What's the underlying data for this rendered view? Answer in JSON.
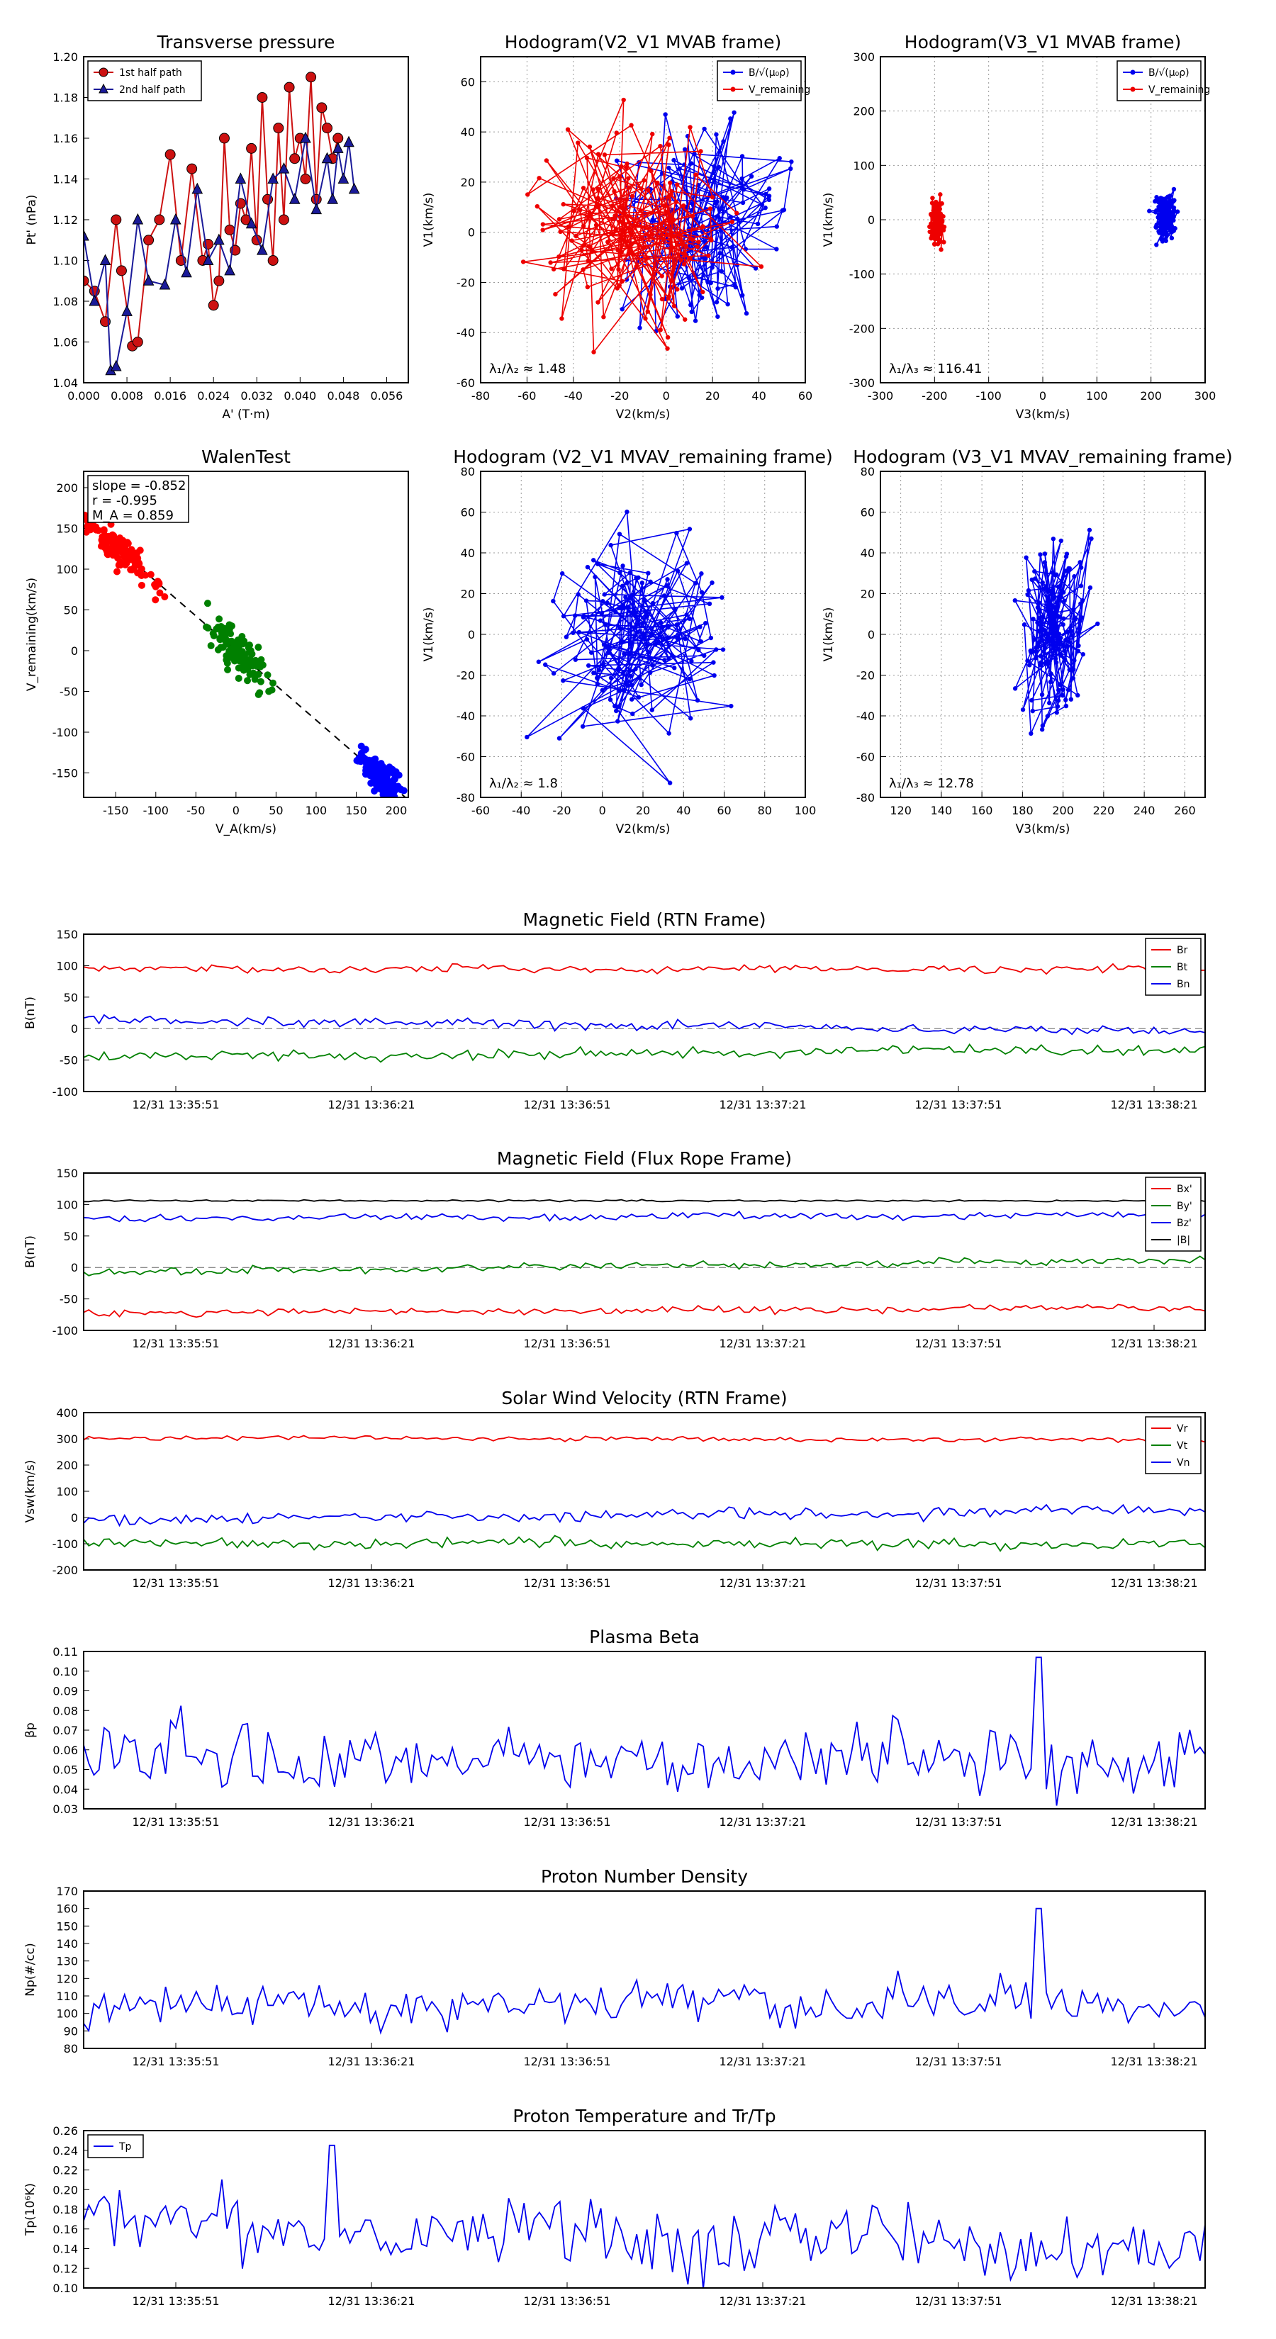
{
  "chart_data": [
    {
      "id": "tp",
      "type": "scatter",
      "title": "Transverse pressure",
      "xlabel": "A' (T·m)",
      "ylabel": "Pt' (nPa)",
      "xlim": [
        0,
        0.06
      ],
      "ylim": [
        1.04,
        1.2
      ],
      "xticks": [
        0,
        0.008,
        0.016,
        0.024,
        0.032,
        0.04,
        0.048,
        0.056
      ],
      "xtick_labels": [
        "0.000",
        "0.008",
        "0.016",
        "0.024",
        "0.032",
        "0.040",
        "0.048",
        "0.056"
      ],
      "yticks": [
        1.04,
        1.06,
        1.08,
        1.1,
        1.12,
        1.14,
        1.16,
        1.18,
        1.2
      ],
      "ytick_labels": [
        "1.04",
        "1.06",
        "1.08",
        "1.10",
        "1.12",
        "1.14",
        "1.16",
        "1.18",
        "1.20"
      ],
      "legend": "top-left",
      "series": [
        {
          "name": "1st half path",
          "color": "#cc1111",
          "marker": "circle",
          "x": [
            0.0,
            0.002,
            0.004,
            0.006,
            0.007,
            0.009,
            0.01,
            0.012,
            0.014,
            0.016,
            0.018,
            0.02,
            0.022,
            0.023,
            0.024,
            0.025,
            0.026,
            0.027,
            0.028,
            0.029,
            0.03,
            0.031,
            0.032,
            0.033,
            0.034,
            0.035,
            0.036,
            0.037,
            0.038,
            0.039,
            0.04,
            0.041,
            0.042,
            0.043,
            0.044,
            0.045,
            0.046,
            0.047
          ],
          "y": [
            1.09,
            1.085,
            1.07,
            1.12,
            1.095,
            1.058,
            1.06,
            1.11,
            1.12,
            1.152,
            1.1,
            1.145,
            1.1,
            1.108,
            1.078,
            1.09,
            1.16,
            1.115,
            1.105,
            1.128,
            1.12,
            1.155,
            1.11,
            1.18,
            1.13,
            1.1,
            1.165,
            1.12,
            1.185,
            1.15,
            1.16,
            1.14,
            1.19,
            1.13,
            1.175,
            1.165,
            1.15,
            1.16
          ]
        },
        {
          "name": "2nd half path",
          "color": "#1a1a99",
          "marker": "triangle",
          "x": [
            0.0,
            0.002,
            0.004,
            0.005,
            0.006,
            0.008,
            0.01,
            0.012,
            0.015,
            0.017,
            0.019,
            0.021,
            0.023,
            0.025,
            0.027,
            0.029,
            0.031,
            0.033,
            0.035,
            0.037,
            0.039,
            0.041,
            0.043,
            0.045,
            0.046,
            0.047,
            0.048,
            0.049,
            0.05
          ],
          "y": [
            1.112,
            1.08,
            1.1,
            1.046,
            1.048,
            1.075,
            1.12,
            1.09,
            1.088,
            1.12,
            1.094,
            1.135,
            1.1,
            1.11,
            1.095,
            1.14,
            1.118,
            1.105,
            1.14,
            1.145,
            1.13,
            1.16,
            1.125,
            1.15,
            1.13,
            1.155,
            1.14,
            1.158,
            1.135
          ]
        }
      ]
    },
    {
      "id": "h1",
      "type": "line",
      "title": "Hodogram(V2_V1 MVAB frame)",
      "xlabel": "V2(km/s)",
      "ylabel": "V1(km/s)",
      "xlim": [
        -80,
        60
      ],
      "ylim": [
        -60,
        70
      ],
      "xticks": [
        -80,
        -60,
        -40,
        -20,
        0,
        20,
        40,
        60
      ],
      "yticks": [
        -60,
        -40,
        -20,
        0,
        20,
        40,
        60
      ],
      "legend": "top-right",
      "annotation": "λ₁/λ₂ ≈ 1.48",
      "series": [
        {
          "name": "B/√(μ₀ρ)",
          "color": "#0000ee",
          "n": 130,
          "cx": 15,
          "cy": 5,
          "sx": 18,
          "sy": 22
        },
        {
          "name": "V_remaining",
          "color": "#ee0000",
          "n": 150,
          "cx": -15,
          "cy": 0,
          "sx": 20,
          "sy": 20
        }
      ]
    },
    {
      "id": "h2",
      "type": "line",
      "title": "Hodogram(V3_V1 MVAB frame)",
      "xlabel": "V3(km/s)",
      "ylabel": "V1(km/s)",
      "xlim": [
        -300,
        300
      ],
      "ylim": [
        -300,
        300
      ],
      "xticks": [
        -300,
        -200,
        -100,
        0,
        100,
        200,
        300
      ],
      "yticks": [
        -300,
        -200,
        -100,
        0,
        100,
        200,
        300
      ],
      "legend": "top-right",
      "annotation": "λ₁/λ₃ ≈ 116.41",
      "series": [
        {
          "name": "B/√(μ₀ρ)",
          "color": "#0000ee",
          "n": 130,
          "cx": 225,
          "cy": 5,
          "sx": 10,
          "sy": 20
        },
        {
          "name": "V_remaining",
          "color": "#ee0000",
          "n": 150,
          "cx": -195,
          "cy": -5,
          "sx": 6,
          "sy": 20
        }
      ]
    },
    {
      "id": "walen",
      "type": "scatter",
      "title": "WalenTest",
      "xlabel": "V_A(km/s)",
      "ylabel": "V_remaining(km/s)",
      "xlim": [
        -190,
        215
      ],
      "ylim": [
        -180,
        220
      ],
      "xticks": [
        -150,
        -100,
        -50,
        0,
        50,
        100,
        150,
        200
      ],
      "yticks": [
        -150,
        -100,
        -50,
        0,
        50,
        100,
        150,
        200
      ],
      "stats": [
        "slope = -0.852",
        "r = -0.995",
        "M_A = 0.859"
      ],
      "series": [
        {
          "name": "red",
          "color": "#ff0000",
          "n": 130,
          "cx": -145,
          "sx": 20,
          "sy": 10
        },
        {
          "name": "green",
          "color": "#008000",
          "n": 130,
          "cx": 5,
          "sx": 18,
          "sy": 12
        },
        {
          "name": "blue",
          "color": "#0000ff",
          "n": 130,
          "cx": 180,
          "sx": 15,
          "sy": 10
        }
      ]
    },
    {
      "id": "h3",
      "type": "line",
      "title": "Hodogram (V2_V1 MVAV_remaining frame)",
      "xlabel": "V2(km/s)",
      "ylabel": "V1(km/s)",
      "xlim": [
        -60,
        100
      ],
      "ylim": [
        -80,
        80
      ],
      "xticks": [
        -60,
        -40,
        -20,
        0,
        20,
        40,
        60,
        80,
        100
      ],
      "yticks": [
        -80,
        -60,
        -40,
        -20,
        0,
        20,
        40,
        60,
        80
      ],
      "annotation": "λ₁/λ₂ ≈ 1.8",
      "series": [
        {
          "name": "V",
          "color": "#0000ee",
          "n": 150,
          "cx": 15,
          "cy": 0,
          "sx": 20,
          "sy": 25
        }
      ]
    },
    {
      "id": "h4",
      "type": "line",
      "title": "Hodogram (V3_V1 MVAV_remaining frame)",
      "xlabel": "V3(km/s)",
      "ylabel": "V1(km/s)",
      "xlim": [
        110,
        270
      ],
      "ylim": [
        -80,
        80
      ],
      "xticks": [
        120,
        140,
        160,
        180,
        200,
        220,
        240,
        260
      ],
      "yticks": [
        -80,
        -60,
        -40,
        -20,
        0,
        20,
        40,
        60,
        80
      ],
      "annotation": "λ₁/λ₃ ≈ 12.78",
      "series": [
        {
          "name": "V",
          "color": "#0000ee",
          "n": 150,
          "cx": 195,
          "cy": 0,
          "sx": 8,
          "sy": 22
        }
      ]
    },
    {
      "id": "mag_rtn",
      "type": "line",
      "title": "Magnetic Field (RTN Frame)",
      "ylabel": "B(nT)",
      "ylim": [
        -100,
        150
      ],
      "yticks": [
        -100,
        -50,
        0,
        50,
        100,
        150
      ],
      "xtick_labels": [
        "12/31 13:35:51",
        "12/31 13:36:21",
        "12/31 13:36:51",
        "12/31 13:37:21",
        "12/31 13:37:51",
        "12/31 13:38:21"
      ],
      "legend": "top-right",
      "zero_line": true,
      "series": [
        {
          "name": "Br",
          "color": "#ee0000",
          "base": 95,
          "amp": 4,
          "trend": 0
        },
        {
          "name": "Bt",
          "color": "#008000",
          "base": -45,
          "amp": 6,
          "trend": 12
        },
        {
          "name": "Bn",
          "color": "#0000ee",
          "base": 15,
          "amp": 5,
          "trend": -20
        }
      ]
    },
    {
      "id": "mag_fr",
      "type": "line",
      "title": "Magnetic Field (Flux Rope Frame)",
      "ylabel": "B(nT)",
      "ylim": [
        -100,
        150
      ],
      "yticks": [
        -100,
        -50,
        0,
        50,
        100,
        150
      ],
      "xtick_labels": [
        "12/31 13:35:51",
        "12/31 13:36:21",
        "12/31 13:36:51",
        "12/31 13:37:21",
        "12/31 13:37:51",
        "12/31 13:38:21"
      ],
      "legend": "top-right",
      "zero_line": true,
      "series": [
        {
          "name": "Bx'",
          "color": "#ee0000",
          "base": -72,
          "amp": 4,
          "trend": 8
        },
        {
          "name": "By'",
          "color": "#008000",
          "base": -8,
          "amp": 4,
          "trend": 20
        },
        {
          "name": "Bz'",
          "color": "#0000ee",
          "base": 78,
          "amp": 4,
          "trend": 6
        },
        {
          "name": "|B|",
          "color": "#000000",
          "base": 106,
          "amp": 1,
          "trend": 0
        }
      ]
    },
    {
      "id": "vsw",
      "type": "line",
      "title": "Solar Wind Velocity (RTN Frame)",
      "ylabel": "Vsw(km/s)",
      "ylim": [
        -200,
        400
      ],
      "yticks": [
        -200,
        -100,
        0,
        100,
        200,
        300,
        400
      ],
      "xtick_labels": [
        "12/31 13:35:51",
        "12/31 13:36:21",
        "12/31 13:36:51",
        "12/31 13:37:21",
        "12/31 13:37:51",
        "12/31 13:38:21"
      ],
      "legend": "top-right",
      "series": [
        {
          "name": "Vr",
          "color": "#ee0000",
          "base": 305,
          "amp": 6,
          "trend": -10
        },
        {
          "name": "Vt",
          "color": "#008000",
          "base": -100,
          "amp": 15,
          "trend": 0
        },
        {
          "name": "Vn",
          "color": "#0000ee",
          "base": -10,
          "amp": 15,
          "trend": 40
        }
      ]
    },
    {
      "id": "beta",
      "type": "line",
      "title": "Plasma Beta",
      "ylabel": "βp",
      "ylim": [
        0.03,
        0.11
      ],
      "yticks": [
        0.03,
        0.04,
        0.05,
        0.06,
        0.07,
        0.08,
        0.09,
        0.1,
        0.11
      ],
      "ytick_labels": [
        "0.03",
        "0.04",
        "0.05",
        "0.06",
        "0.07",
        "0.08",
        "0.09",
        "0.10",
        "0.11"
      ],
      "xtick_labels": [
        "12/31 13:35:51",
        "12/31 13:36:21",
        "12/31 13:36:51",
        "12/31 13:37:21",
        "12/31 13:37:51",
        "12/31 13:38:21"
      ],
      "series": [
        {
          "name": "beta",
          "color": "#0000ee",
          "base": 0.055,
          "amp": 0.012,
          "trend": 0,
          "spike": [
            0.85,
            0.107
          ]
        }
      ]
    },
    {
      "id": "np",
      "type": "line",
      "title": "Proton Number Density",
      "ylabel": "Np(#/cc)",
      "ylim": [
        80,
        170
      ],
      "yticks": [
        80,
        90,
        100,
        110,
        120,
        130,
        140,
        150,
        160,
        170
      ],
      "xtick_labels": [
        "12/31 13:35:51",
        "12/31 13:36:21",
        "12/31 13:36:51",
        "12/31 13:37:21",
        "12/31 13:37:51",
        "12/31 13:38:21"
      ],
      "series": [
        {
          "name": "Np",
          "color": "#0000ee",
          "base": 105,
          "amp": 9,
          "trend": 0,
          "spike": [
            0.85,
            160
          ]
        }
      ]
    },
    {
      "id": "tp_t",
      "type": "line",
      "title": "Proton Temperature and Tr/Tp",
      "ylabel": "Tp(10⁶K)",
      "ylim": [
        0.1,
        0.26
      ],
      "yticks": [
        0.1,
        0.12,
        0.14,
        0.16,
        0.18,
        0.2,
        0.22,
        0.24,
        0.26
      ],
      "ytick_labels": [
        "0.10",
        "0.12",
        "0.14",
        "0.16",
        "0.18",
        "0.20",
        "0.22",
        "0.24",
        "0.26"
      ],
      "xtick_labels": [
        "12/31 13:35:51",
        "12/31 13:36:21",
        "12/31 13:36:51",
        "12/31 13:37:21",
        "12/31 13:37:51",
        "12/31 13:38:21"
      ],
      "legend": "top-left",
      "series": [
        {
          "name": "Tp",
          "color": "#0000ee",
          "base": 0.17,
          "amp": 0.025,
          "trend": -0.03,
          "spike": [
            0.22,
            0.245
          ]
        }
      ]
    }
  ]
}
